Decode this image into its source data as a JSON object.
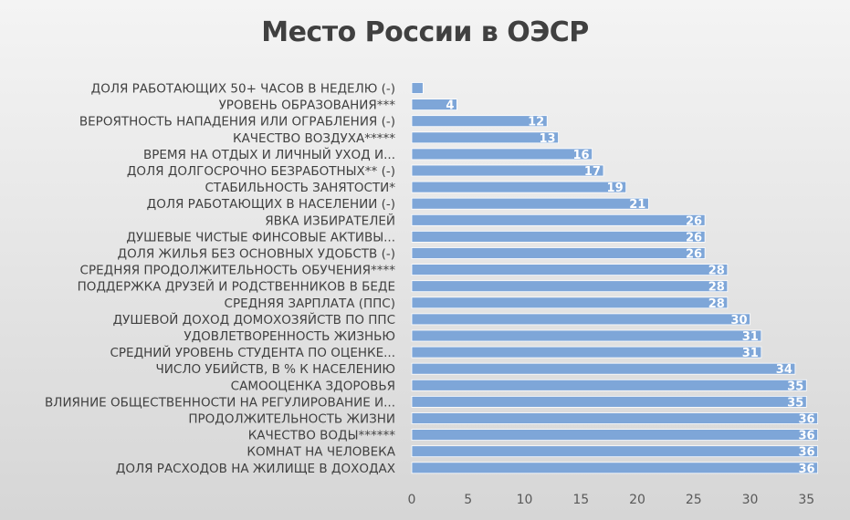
{
  "chart_data": {
    "type": "bar",
    "orientation": "horizontal",
    "title": "Место России в ОЭСР",
    "categories": [
      "ДОЛЯ РАБОТАЮЩИХ 50+ ЧАСОВ В НЕДЕЛЮ (-)",
      "УРОВЕНЬ ОБРАЗОВАНИЯ***",
      "ВЕРОЯТНОСТЬ НАПАДЕНИЯ ИЛИ ОГРАБЛЕНИЯ (-)",
      "КАЧЕСТВО ВОЗДУХА*****",
      "ВРЕМЯ НА ОТДЫХ И ЛИЧНЫЙ УХОД И...",
      "ДОЛЯ ДОЛГОСРОЧНО БЕЗРАБОТНЫХ** (-)",
      "СТАБИЛЬНОСТЬ ЗАНЯТОСТИ*",
      "ДОЛЯ РАБОТАЮЩИХ В НАСЕЛЕНИИ (-)",
      "ЯВКА ИЗБИРАТЕЛЕЙ",
      "ДУШЕВЫЕ ЧИСТЫЕ ФИНСОВЫЕ АКТИВЫ...",
      "ДОЛЯ ЖИЛЬЯ БЕЗ ОСНОВНЫХ УДОБСТВ (-)",
      "СРЕДНЯЯ ПРОДОЛЖИТЕЛЬНОСТЬ ОБУЧЕНИЯ****",
      "ПОДДЕРЖКА ДРУЗЕЙ И РОДСТВЕННИКОВ В БЕДЕ",
      "СРЕДНЯЯ ЗАРПЛАТА (ППС)",
      "ДУШЕВОЙ ДОХОД ДОМОХОЗЯЙСТВ ПО ППС",
      "УДОВЛЕТВОРЕННОСТЬ ЖИЗНЬЮ",
      "СРЕДНИЙ УРОВЕНЬ СТУДЕНТА ПО ОЦЕНКЕ...",
      "ЧИСЛО УБИЙСТВ, В % К НАСЕЛЕНИЮ",
      "САМООЦЕНКА ЗДОРОВЬЯ",
      "ВЛИЯНИЕ ОБЩЕСТВЕННОСТИ НА РЕГУЛИРОВАНИЕ И...",
      "ПРОДОЛЖИТЕЛЬНОСТЬ ЖИЗНИ",
      "КАЧЕСТВО ВОДЫ******",
      "КОМНАТ НА ЧЕЛОВЕКА",
      "ДОЛЯ РАСХОДОВ НА ЖИЛИЩЕ В ДОХОДАХ"
    ],
    "values": [
      1,
      4,
      12,
      13,
      16,
      17,
      19,
      21,
      26,
      26,
      26,
      28,
      28,
      28,
      30,
      31,
      31,
      34,
      35,
      35,
      36,
      36,
      36,
      36
    ],
    "data_labels": [
      "",
      "4",
      "12",
      "13",
      "16",
      "17",
      "19",
      "21",
      "26",
      "26",
      "26",
      "28",
      "28",
      "28",
      "30",
      "31",
      "31",
      "34",
      "35",
      "35",
      "36",
      "36",
      "36",
      "36"
    ],
    "xlim": [
      0,
      37
    ],
    "xticks": [
      "0",
      "5",
      "10",
      "15",
      "20",
      "25",
      "30",
      "35"
    ],
    "xtick_values": [
      0,
      5,
      10,
      15,
      20,
      25,
      30,
      35
    ],
    "grid": false,
    "legend": "none",
    "bar_color": "#7ea6d8",
    "bar_edge_color": "#ffffff",
    "label_color": "#404040",
    "title_color": "#404040"
  }
}
